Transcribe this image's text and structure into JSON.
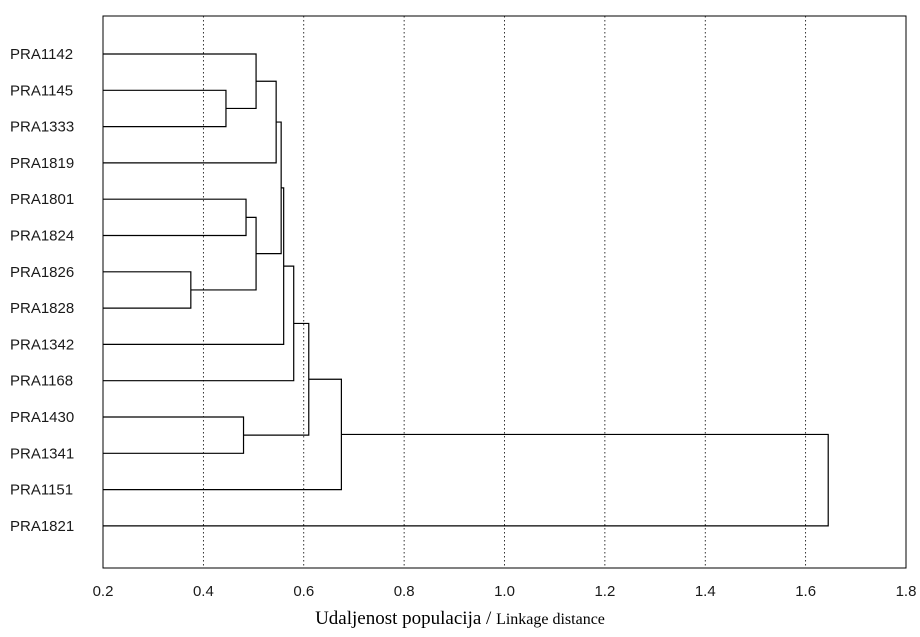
{
  "chart_data": {
    "type": "dendrogram",
    "orientation": "horizontal",
    "xlabel_primary": "Udaljenost populacija / ",
    "xlabel_secondary": "Linkage distance",
    "xlim": [
      0.2,
      1.8
    ],
    "xticks": [
      "0.2",
      "0.4",
      "0.6",
      "0.8",
      "1.0",
      "1.2",
      "1.4",
      "1.6",
      "1.8"
    ],
    "grid": "vertical dotted",
    "leaves": [
      "PRA1142",
      "PRA1145",
      "PRA1333",
      "PRA1819",
      "PRA1801",
      "PRA1824",
      "PRA1826",
      "PRA1828",
      "PRA1342",
      "PRA1168",
      "PRA1430",
      "PRA1341",
      "PRA1151",
      "PRA1821"
    ],
    "merges": [
      {
        "a": "PRA1826",
        "b": "PRA1828",
        "distance": 0.375
      },
      {
        "a": "PRA1145",
        "b": "PRA1333",
        "distance": 0.445
      },
      {
        "a": "PRA1430",
        "b": "PRA1341",
        "distance": 0.48
      },
      {
        "a": "PRA1801",
        "b": "PRA1824",
        "distance": 0.485
      },
      {
        "a": "PRA1142",
        "b": "m2",
        "distance": 0.505
      },
      {
        "a": "m4",
        "b": "m1",
        "distance": 0.505
      },
      {
        "a": "m5",
        "b": "PRA1819",
        "distance": 0.545
      },
      {
        "a": "m7",
        "b": "m6",
        "distance": 0.555
      },
      {
        "a": "m8",
        "b": "PRA1342",
        "distance": 0.56
      },
      {
        "a": "m9",
        "b": "PRA1168",
        "distance": 0.58
      },
      {
        "a": "m10",
        "b": "m3",
        "distance": 0.61
      },
      {
        "a": "m11",
        "b": "PRA1151",
        "distance": 0.675
      },
      {
        "a": "m12",
        "b": "PRA1821",
        "distance": 1.645
      }
    ]
  }
}
